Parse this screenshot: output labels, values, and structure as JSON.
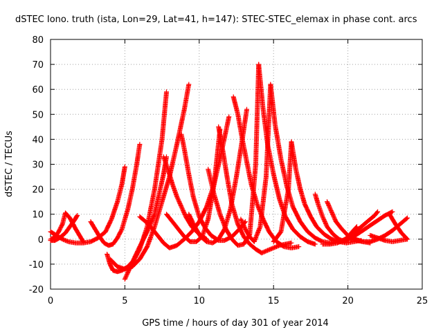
{
  "chart_data": {
    "type": "scatter",
    "title": "dSTEC Iono. truth (ista, Lon=29, Lat=41, h=147): STEC-STEC_elemax in phase cont. arcs",
    "xlabel": "GPS time / hours of day 301 of year 2014",
    "ylabel": "dSTEC  / TECUs",
    "xlim": [
      0,
      25
    ],
    "ylim": [
      -20,
      80
    ],
    "x_ticks": [
      "0",
      "5",
      "10",
      "15",
      "20",
      "25"
    ],
    "y_ticks": [
      "-20",
      "-10",
      "0",
      "10",
      "20",
      "30",
      "40",
      "50",
      "60",
      "70",
      "80"
    ],
    "grid": true,
    "marker": "+",
    "color": "#ff0000",
    "series": [
      {
        "arc_id": 1,
        "x": [
          0.0,
          0.4,
          0.8,
          1.2,
          1.7,
          2.2,
          2.7,
          3.2,
          3.7,
          4.1,
          4.5,
          4.8,
          5.0
        ],
        "values": [
          3.0,
          1.5,
          0.0,
          -1.0,
          -1.5,
          -1.5,
          -1.0,
          0.5,
          3.0,
          8.0,
          15.0,
          22.0,
          29.0
        ]
      },
      {
        "arc_id": 2,
        "x": [
          0.0,
          0.2,
          0.5,
          0.8,
          1.0,
          1.3,
          1.7,
          2.2
        ],
        "values": [
          0.0,
          0.5,
          2.5,
          6.0,
          10.5,
          8.5,
          4.0,
          -1.0
        ]
      },
      {
        "arc_id": 3,
        "x": [
          0.0,
          0.3,
          0.6,
          1.0,
          1.3,
          1.6,
          1.8
        ],
        "values": [
          -0.5,
          -0.5,
          0.5,
          2.5,
          5.0,
          7.5,
          9.5
        ]
      },
      {
        "arc_id": 4,
        "x": [
          2.7,
          3.0,
          3.3,
          3.6,
          3.9,
          4.2,
          4.5,
          4.8,
          5.2,
          5.5,
          5.8,
          6.0
        ],
        "values": [
          7.0,
          4.0,
          1.0,
          -1.5,
          -2.5,
          -2.0,
          0.5,
          4.0,
          12.0,
          20.0,
          30.0,
          38.0
        ]
      },
      {
        "arc_id": 5,
        "x": [
          3.8,
          4.0,
          4.2,
          4.5,
          4.8,
          5.2,
          5.6,
          6.0,
          6.5,
          7.0,
          7.5,
          7.8
        ],
        "values": [
          -6.0,
          -10.0,
          -12.5,
          -13.0,
          -12.5,
          -11.0,
          -8.5,
          -4.0,
          5.0,
          20.0,
          40.0,
          59.0
        ]
      },
      {
        "arc_id": 6,
        "x": [
          4.0,
          4.5,
          5.0,
          5.5,
          6.0,
          6.5,
          7.0,
          7.5,
          8.0,
          8.5,
          9.0,
          9.3
        ],
        "values": [
          -8.0,
          -11.0,
          -12.0,
          -11.0,
          -8.0,
          -3.0,
          5.0,
          15.0,
          25.0,
          38.0,
          52.0,
          62.0
        ]
      },
      {
        "arc_id": 7,
        "x": [
          5.0,
          5.3,
          5.6,
          6.0,
          6.5,
          7.0,
          7.3,
          7.6,
          7.8
        ],
        "values": [
          -16.0,
          -12.0,
          -8.0,
          -3.0,
          3.0,
          10.0,
          18.0,
          26.0,
          33.0
        ]
      },
      {
        "arc_id": 8,
        "x": [
          7.6,
          7.9,
          8.2,
          8.5,
          8.8,
          9.1,
          9.5,
          10.0,
          10.5
        ],
        "values": [
          33.0,
          28.0,
          22.0,
          17.0,
          13.0,
          9.0,
          5.0,
          2.0,
          0.0
        ]
      },
      {
        "arc_id": 9,
        "x": [
          6.0,
          6.4,
          6.8,
          7.2,
          7.6,
          8.0,
          8.5,
          9.0,
          9.5,
          10.0,
          10.5,
          11.0,
          11.5,
          12.0
        ],
        "values": [
          9.0,
          7.0,
          4.5,
          1.5,
          -1.5,
          -3.5,
          -2.5,
          0.0,
          3.0,
          7.0,
          13.0,
          22.0,
          35.0,
          49.0
        ]
      },
      {
        "arc_id": 10,
        "x": [
          8.8,
          9.0,
          9.3,
          9.6,
          10.0,
          10.4,
          10.8,
          11.3,
          11.7,
          12.2,
          12.7,
          13.1
        ],
        "values": [
          42.0,
          36.0,
          26.0,
          17.0,
          9.0,
          4.5,
          1.5,
          -0.5,
          -0.5,
          1.0,
          4.0,
          7.0
        ]
      },
      {
        "arc_id": 11,
        "x": [
          7.8,
          8.2,
          8.6,
          9.0,
          9.4,
          9.8,
          10.2,
          10.6,
          11.0,
          11.4
        ],
        "values": [
          10.0,
          7.0,
          4.0,
          1.0,
          -1.0,
          -1.0,
          1.0,
          8.0,
          22.0,
          44.0
        ]
      },
      {
        "arc_id": 12,
        "x": [
          11.3,
          11.6,
          11.9,
          12.2,
          12.6,
          13.0,
          13.4,
          13.8,
          14.2,
          14.6,
          15.0,
          15.4,
          15.8,
          16.2
        ],
        "values": [
          45.0,
          35.0,
          24.0,
          14.0,
          6.0,
          1.0,
          -2.0,
          -4.0,
          -5.5,
          -4.5,
          -3.5,
          -2.5,
          -2.0,
          -1.5
        ]
      },
      {
        "arc_id": 13,
        "x": [
          9.3,
          9.7,
          10.1,
          10.5,
          10.9,
          11.3,
          11.7,
          12.1,
          12.5,
          12.9,
          13.2
        ],
        "values": [
          10.0,
          5.0,
          1.0,
          -1.0,
          -1.5,
          0.0,
          4.0,
          12.0,
          25.0,
          40.0,
          52.0
        ]
      },
      {
        "arc_id": 14,
        "x": [
          12.3,
          12.6,
          12.9,
          13.2,
          13.5,
          13.9,
          14.3,
          14.7,
          15.2,
          15.7,
          16.2,
          16.7
        ],
        "values": [
          57.0,
          50.0,
          40.0,
          31.0,
          22.0,
          14.0,
          8.0,
          3.0,
          -1.0,
          -3.0,
          -3.5,
          -3.0
        ]
      },
      {
        "arc_id": 15,
        "x": [
          10.6,
          11.0,
          11.4,
          11.8,
          12.2,
          12.6,
          13.0,
          13.4,
          13.8,
          14.0
        ],
        "values": [
          28.0,
          18.0,
          10.0,
          4.0,
          0.0,
          -2.5,
          -2.0,
          2.0,
          30.0,
          70.0
        ]
      },
      {
        "arc_id": 16,
        "x": [
          14.0,
          14.3,
          14.6,
          15.0,
          15.4,
          15.8,
          16.3,
          16.8,
          17.3,
          17.8
        ],
        "values": [
          70.0,
          52.0,
          38.0,
          26.0,
          16.0,
          9.0,
          4.0,
          1.0,
          -1.0,
          -2.0
        ]
      },
      {
        "arc_id": 17,
        "x": [
          12.8,
          13.1,
          13.4,
          13.7,
          14.1,
          14.5,
          14.8
        ],
        "values": [
          8.0,
          4.0,
          1.0,
          -1.0,
          5.0,
          25.0,
          62.0
        ]
      },
      {
        "arc_id": 18,
        "x": [
          14.8,
          15.1,
          15.5,
          15.9,
          16.3,
          16.8,
          17.3,
          17.8,
          18.3,
          18.8,
          19.3
        ],
        "values": [
          62.0,
          46.0,
          32.0,
          21.0,
          13.0,
          7.0,
          3.0,
          0.5,
          -1.0,
          -1.5,
          -1.0
        ]
      },
      {
        "arc_id": 19,
        "x": [
          15.0,
          15.5,
          16.0,
          16.2
        ],
        "values": [
          -1.0,
          3.0,
          20.0,
          39.0
        ]
      },
      {
        "arc_id": 20,
        "x": [
          16.2,
          16.5,
          16.8,
          17.1,
          17.5,
          17.9,
          18.4,
          18.9,
          19.4,
          19.9,
          20.4,
          20.9
        ],
        "values": [
          39.0,
          28.0,
          20.0,
          14.0,
          9.0,
          5.0,
          2.0,
          0.0,
          -1.0,
          -1.5,
          -1.0,
          -0.5
        ]
      },
      {
        "arc_id": 21,
        "x": [
          17.8,
          18.0,
          18.3,
          18.6,
          19.0,
          19.4,
          19.8
        ],
        "values": [
          18.0,
          14.0,
          9.0,
          5.0,
          2.0,
          0.0,
          -1.0
        ]
      },
      {
        "arc_id": 22,
        "x": [
          18.6,
          18.9,
          19.2,
          19.6,
          20.0,
          20.5,
          21.0,
          21.5
        ],
        "values": [
          15.0,
          11.0,
          7.0,
          4.0,
          1.5,
          0.0,
          -1.0,
          -1.5
        ]
      },
      {
        "arc_id": 23,
        "x": [
          18.3,
          18.8,
          19.3,
          19.8,
          20.3,
          20.8,
          21.3,
          21.8,
          22.0
        ],
        "values": [
          -2.0,
          -2.0,
          -1.5,
          0.0,
          2.0,
          4.5,
          7.0,
          9.5,
          11.0
        ]
      },
      {
        "arc_id": 24,
        "x": [
          19.5,
          20.0,
          20.5,
          21.0,
          21.5,
          22.0,
          22.5,
          23.0
        ],
        "values": [
          -1.0,
          0.0,
          1.5,
          3.5,
          5.5,
          7.5,
          9.5,
          11.0
        ]
      },
      {
        "arc_id": 25,
        "x": [
          20.2,
          20.6,
          21.0,
          21.5,
          22.0,
          22.5,
          23.0,
          23.5,
          24.0
        ],
        "values": [
          0.0,
          -0.5,
          -1.0,
          -1.0,
          0.0,
          1.5,
          3.5,
          6.0,
          8.5
        ]
      },
      {
        "arc_id": 26,
        "x": [
          20.0,
          20.3,
          20.6
        ],
        "values": [
          1.0,
          3.0,
          5.0
        ]
      },
      {
        "arc_id": 27,
        "x": [
          21.5,
          22.0,
          22.5,
          23.0,
          23.5,
          24.0
        ],
        "values": [
          1.5,
          0.5,
          -0.5,
          -1.0,
          -0.5,
          0.0
        ]
      },
      {
        "arc_id": 28,
        "x": [
          22.8,
          23.2,
          23.6,
          24.0
        ],
        "values": [
          10.0,
          6.0,
          2.5,
          0.0
        ]
      }
    ]
  }
}
